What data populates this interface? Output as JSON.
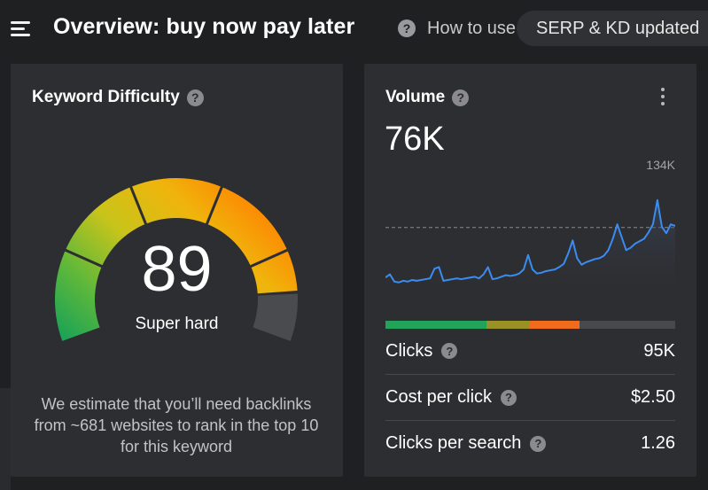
{
  "header": {
    "title": "Overview: buy now pay later",
    "help_label": "How to use",
    "status": "SERP & KD updated"
  },
  "kd": {
    "title": "Keyword Difficulty",
    "value": "89",
    "label": "Super hard",
    "description": "We estimate that you’ll need backlinks from ~681 websites to rank in the top 10 for this keyword",
    "score": 89
  },
  "volume": {
    "title": "Volume",
    "value": "76K",
    "max_label": "134K",
    "trend": [
      14,
      18,
      9,
      8,
      10,
      9,
      11,
      10,
      11,
      12,
      13,
      25,
      27,
      10,
      11,
      12,
      13,
      12,
      13,
      14,
      15,
      13,
      18,
      27,
      12,
      13,
      15,
      17,
      16,
      17,
      19,
      24,
      42,
      24,
      19,
      20,
      22,
      23,
      24,
      27,
      31,
      44,
      60,
      38,
      30,
      33,
      35,
      37,
      38,
      41,
      48,
      62,
      80,
      64,
      48,
      51,
      56,
      59,
      62,
      70,
      80,
      110,
      77,
      69,
      80,
      78
    ],
    "trend_max": 134,
    "reference_value": 76,
    "distribution": [
      {
        "color": "#21a35a",
        "fraction": 0.35
      },
      {
        "color": "#9a9126",
        "fraction": 0.15
      },
      {
        "color": "#f06b1c",
        "fraction": 0.17
      },
      {
        "color": "#48494d",
        "fraction": 0.33
      }
    ],
    "metrics": [
      {
        "label": "Clicks",
        "value": "95K"
      },
      {
        "label": "Cost per click",
        "value": "$2.50"
      },
      {
        "label": "Clicks per search",
        "value": "1.26"
      }
    ]
  },
  "colors": {
    "background": "#1f2022",
    "card": "#2d2e31",
    "line": "#3b8cf0",
    "gauge_gradient": [
      "#12a05a",
      "#5fb83a",
      "#c9c41a",
      "#f0b40c",
      "#ff7f00"
    ],
    "gauge_remainder": "#4a4b4e"
  }
}
